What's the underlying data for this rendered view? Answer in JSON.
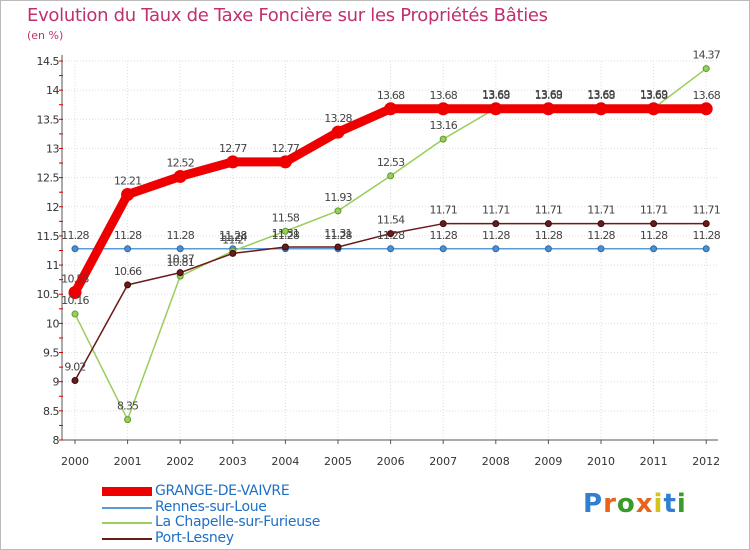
{
  "title": "Evolution du Taux de Taxe Foncière sur les Propriétés Bâties",
  "unit_label": "(en %)",
  "brand": "Proxiti",
  "chart_data": {
    "type": "line",
    "title": "Evolution du Taux de Taxe Foncière sur les Propriétés Bâties",
    "ylabel": "(en %)",
    "xlabel": "",
    "x": [
      2000,
      2001,
      2002,
      2003,
      2004,
      2005,
      2006,
      2007,
      2008,
      2009,
      2010,
      2011,
      2012
    ],
    "ylim": [
      8,
      14.5
    ],
    "yticks": [
      8,
      8.5,
      9,
      9.5,
      10,
      10.5,
      11,
      11.5,
      12,
      12.5,
      13,
      13.5,
      14,
      14.5
    ],
    "ytick_labels": [
      "8",
      "8.5",
      "9",
      "9.5",
      "10",
      "10.5",
      "11",
      "11.5",
      "12",
      "12.5",
      "13",
      "13.5",
      "14",
      "14.5"
    ],
    "grid": true,
    "legend_position": "bottom-left",
    "series": [
      {
        "name": "GRANGE-DE-VAIVRE",
        "color": "#ee0000",
        "values": [
          10.53,
          12.21,
          12.52,
          12.77,
          12.77,
          13.28,
          13.68,
          13.68,
          13.68,
          13.68,
          13.68,
          13.68,
          13.68
        ],
        "labels": [
          "10.53",
          "12.21",
          "12.52",
          "12.77",
          "12.77",
          "13.28",
          "13.68",
          "13.68",
          "13.68",
          "13.68",
          "13.68",
          "13.68",
          "13.68"
        ]
      },
      {
        "name": "Rennes-sur-Loue",
        "color": "#5b9bd5",
        "values": [
          11.28,
          11.28,
          11.28,
          11.28,
          11.28,
          11.28,
          11.28,
          11.28,
          11.28,
          11.28,
          11.28,
          11.28,
          11.28
        ],
        "labels": [
          "11.28",
          "11.28",
          "11.28",
          "11.28",
          "11.28",
          "11.28",
          "11.28",
          "11.28",
          "11.28",
          "11.28",
          "11.28",
          "11.28",
          "11.28"
        ]
      },
      {
        "name": "La Chapelle-sur-Furieuse",
        "color": "#9acd5a",
        "values": [
          10.16,
          8.35,
          10.81,
          11.24,
          11.58,
          11.93,
          12.53,
          13.16,
          13.69,
          13.69,
          13.69,
          13.69,
          14.37
        ],
        "labels": [
          "10.16",
          "8.35",
          "10.81",
          "11.24",
          "11.58",
          "11.93",
          "12.53",
          "13.16",
          "13.69",
          "13.69",
          "13.69",
          "13.69",
          "14.37"
        ]
      },
      {
        "name": "Port-Lesney",
        "color": "#6b1a1a",
        "values": [
          9.02,
          10.66,
          10.87,
          11.2,
          11.31,
          11.31,
          11.54,
          11.71,
          11.71,
          11.71,
          11.71,
          11.71,
          11.71
        ],
        "labels": [
          "9.02",
          "10.66",
          "10.87",
          "11.2",
          "11.31",
          "11.31",
          "11.54",
          "11.71",
          "11.71",
          "11.71",
          "11.71",
          "11.71",
          "11.71"
        ]
      }
    ]
  }
}
